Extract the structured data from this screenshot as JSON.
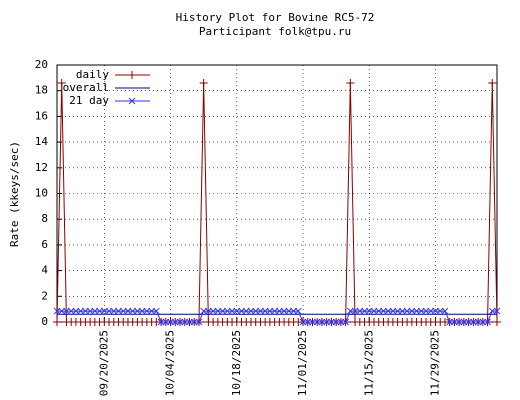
{
  "chart_data": {
    "type": "line",
    "title": "History Plot for Bovine RC5-72",
    "subtitle": "Participant folk@tpu.ru",
    "y_label": "Rate (kkeys/sec)",
    "x": [
      "09/10/2025",
      "09/11/2025",
      "09/12/2025",
      "09/13/2025",
      "09/14/2025",
      "09/15/2025",
      "09/16/2025",
      "09/17/2025",
      "09/18/2025",
      "09/19/2025",
      "09/20/2025",
      "09/21/2025",
      "09/22/2025",
      "09/23/2025",
      "09/24/2025",
      "09/25/2025",
      "09/26/2025",
      "09/27/2025",
      "09/28/2025",
      "09/29/2025",
      "09/30/2025",
      "10/01/2025",
      "10/02/2025",
      "10/03/2025",
      "10/04/2025",
      "10/05/2025",
      "10/06/2025",
      "10/07/2025",
      "10/08/2025",
      "10/09/2025",
      "10/10/2025",
      "10/11/2025",
      "10/12/2025",
      "10/13/2025",
      "10/14/2025",
      "10/15/2025",
      "10/16/2025",
      "10/17/2025",
      "10/18/2025",
      "10/19/2025",
      "10/20/2025",
      "10/21/2025",
      "10/22/2025",
      "10/23/2025",
      "10/24/2025",
      "10/25/2025",
      "10/26/2025",
      "10/27/2025",
      "10/28/2025",
      "10/29/2025",
      "10/30/2025",
      "10/31/2025",
      "11/01/2025",
      "11/02/2025",
      "11/03/2025",
      "11/04/2025",
      "11/05/2025",
      "11/06/2025",
      "11/07/2025",
      "11/08/2025",
      "11/09/2025",
      "11/10/2025",
      "11/11/2025",
      "11/12/2025",
      "11/13/2025",
      "11/14/2025",
      "11/15/2025",
      "11/16/2025",
      "11/17/2025",
      "11/18/2025",
      "11/19/2025",
      "11/20/2025",
      "11/21/2025",
      "11/22/2025",
      "11/23/2025",
      "11/24/2025",
      "11/25/2025",
      "11/26/2025",
      "11/27/2025",
      "11/28/2025",
      "11/29/2025",
      "11/30/2025",
      "12/01/2025",
      "12/02/2025",
      "12/03/2025",
      "12/04/2025",
      "12/05/2025",
      "12/06/2025",
      "12/07/2025",
      "12/08/2025",
      "12/09/2025",
      "12/10/2025",
      "12/11/2025",
      "12/12/2025"
    ],
    "series": [
      {
        "name": "daily",
        "color": "#8b0000",
        "marker": "+",
        "values": [
          0,
          18.6,
          0,
          0,
          0,
          0,
          0,
          0,
          0,
          0,
          0,
          0,
          0,
          0,
          0,
          0,
          0,
          0,
          0,
          0,
          0,
          0,
          0,
          0,
          0,
          0,
          0,
          0,
          0,
          0,
          0,
          18.6,
          0,
          0,
          0,
          0,
          0,
          0,
          0,
          0,
          0,
          0,
          0,
          0,
          0,
          0,
          0,
          0,
          0,
          0,
          0,
          0,
          0,
          0,
          0,
          0,
          0,
          0,
          0,
          0,
          0,
          0,
          18.6,
          0,
          0,
          0,
          0,
          0,
          0,
          0,
          0,
          0,
          0,
          0,
          0,
          0,
          0,
          0,
          0,
          0,
          0,
          0,
          0,
          0,
          0,
          0,
          0,
          0,
          0,
          0,
          0,
          0,
          18.6,
          0
        ]
      },
      {
        "name": "overall",
        "color": "#000080",
        "values": [
          0.6,
          0.6,
          0.6,
          0.6,
          0.6,
          0.6,
          0.6,
          0.6,
          0.6,
          0.6,
          0.6,
          0.6,
          0.6,
          0.6,
          0.6,
          0.6,
          0.6,
          0.6,
          0.6,
          0.6,
          0.6,
          0.6,
          0.6,
          0.6,
          0.6,
          0.6,
          0.6,
          0.6,
          0.6,
          0.6,
          0.6,
          0.6,
          0.6,
          0.6,
          0.6,
          0.6,
          0.6,
          0.6,
          0.6,
          0.6,
          0.6,
          0.6,
          0.6,
          0.6,
          0.6,
          0.6,
          0.6,
          0.6,
          0.6,
          0.6,
          0.6,
          0.6,
          0.6,
          0.6,
          0.6,
          0.6,
          0.6,
          0.6,
          0.6,
          0.6,
          0.6,
          0.6,
          0.6,
          0.6,
          0.6,
          0.6,
          0.6,
          0.6,
          0.6,
          0.6,
          0.6,
          0.6,
          0.6,
          0.6,
          0.6,
          0.6,
          0.6,
          0.6,
          0.6,
          0.6,
          0.6,
          0.6,
          0.6,
          0.6,
          0.6,
          0.6,
          0.6,
          0.6,
          0.6,
          0.6,
          0.6,
          0.6,
          0.6,
          0.6
        ]
      },
      {
        "name": "21 day",
        "color": "#3333ee",
        "marker": "x",
        "values": [
          0.85,
          0.85,
          0.85,
          0.85,
          0.85,
          0.85,
          0.85,
          0.85,
          0.85,
          0.85,
          0.85,
          0.85,
          0.85,
          0.85,
          0.85,
          0.85,
          0.85,
          0.85,
          0.85,
          0.85,
          0.85,
          0.85,
          0,
          0,
          0,
          0,
          0,
          0,
          0,
          0,
          0,
          0.85,
          0.85,
          0.85,
          0.85,
          0.85,
          0.85,
          0.85,
          0.85,
          0.85,
          0.85,
          0.85,
          0.85,
          0.85,
          0.85,
          0.85,
          0.85,
          0.85,
          0.85,
          0.85,
          0.85,
          0.85,
          0,
          0,
          0,
          0,
          0,
          0,
          0,
          0,
          0,
          0,
          0.85,
          0.85,
          0.85,
          0.85,
          0.85,
          0.85,
          0.85,
          0.85,
          0.85,
          0.85,
          0.85,
          0.85,
          0.85,
          0.85,
          0.85,
          0.85,
          0.85,
          0.85,
          0.85,
          0.85,
          0.85,
          0,
          0,
          0,
          0,
          0,
          0,
          0,
          0,
          0,
          0.85,
          0.85
        ]
      }
    ],
    "xlim": [
      "09/10/2025",
      "12/12/2025"
    ],
    "xticks": [
      "09/20/2025",
      "10/04/2025",
      "10/18/2025",
      "11/01/2025",
      "11/15/2025",
      "11/29/2025"
    ],
    "ylim": [
      0,
      20
    ],
    "yticks": [
      0,
      2,
      4,
      6,
      8,
      10,
      12,
      14,
      16,
      18,
      20
    ],
    "grid": true,
    "legend": "top-left"
  }
}
